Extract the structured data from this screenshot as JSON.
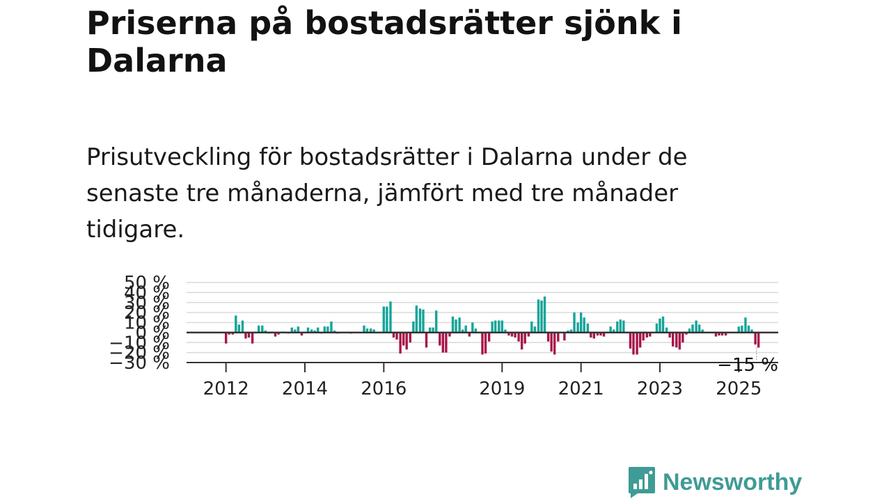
{
  "title": "Priserna på bostadsrätter sjönk i Dalarna",
  "subtitle": "Prisutveckling för bostadsrätter i Dalarna under de senaste tre månaderna, jämfört med tre månader tidigare.",
  "brand": {
    "name": "Newsworthy",
    "icon": "newsworthy-logo-icon",
    "color": "#3f9b95"
  },
  "chart_data": {
    "type": "bar",
    "y_unit": "%",
    "ylim": [
      -30,
      50
    ],
    "y_ticks": [
      50,
      40,
      30,
      20,
      10,
      0,
      -10,
      -20,
      -30
    ],
    "y_tick_labels": [
      "50 %",
      "40 %",
      "30 %",
      "20 %",
      "10 %",
      "0 %",
      "−10 %",
      "−20 %",
      "−30 %"
    ],
    "x_tick_labels": [
      "2012",
      "2014",
      "2016",
      "2019",
      "2021",
      "2023",
      "2025"
    ],
    "x_ticks": [
      2012,
      2014,
      2016,
      2019,
      2021,
      2023,
      2025
    ],
    "x_range": [
      2011.0,
      2026.0
    ],
    "grid": true,
    "colors": {
      "positive": "#14a59a",
      "negative": "#a8154a",
      "zero_line": "#333333"
    },
    "latest": {
      "x": 2025.45,
      "value": -15,
      "label": "−15 %"
    },
    "x": [
      2012.0,
      2012.08,
      2012.17,
      2012.25,
      2012.33,
      2012.42,
      2012.5,
      2012.58,
      2012.67,
      2012.75,
      2012.83,
      2012.92,
      2013.0,
      2013.08,
      2013.17,
      2013.25,
      2013.33,
      2013.42,
      2013.5,
      2013.58,
      2013.67,
      2013.75,
      2013.83,
      2013.92,
      2014.0,
      2014.08,
      2014.17,
      2014.25,
      2014.33,
      2014.42,
      2014.5,
      2014.58,
      2014.67,
      2014.75,
      2014.83,
      2014.92,
      2015.0,
      2015.08,
      2015.17,
      2015.25,
      2015.33,
      2015.42,
      2015.5,
      2015.58,
      2015.67,
      2015.75,
      2015.83,
      2015.92,
      2016.0,
      2016.08,
      2016.17,
      2016.25,
      2016.33,
      2016.42,
      2016.5,
      2016.58,
      2016.67,
      2016.75,
      2016.83,
      2016.92,
      2017.0,
      2017.08,
      2017.17,
      2017.25,
      2017.33,
      2017.42,
      2017.5,
      2017.58,
      2017.67,
      2017.75,
      2017.83,
      2017.92,
      2018.0,
      2018.08,
      2018.17,
      2018.25,
      2018.33,
      2018.42,
      2018.5,
      2018.58,
      2018.67,
      2018.75,
      2018.83,
      2018.92,
      2019.0,
      2019.08,
      2019.17,
      2019.25,
      2019.33,
      2019.42,
      2019.5,
      2019.58,
      2019.67,
      2019.75,
      2019.83,
      2019.92,
      2020.0,
      2020.08,
      2020.17,
      2020.25,
      2020.33,
      2020.42,
      2020.5,
      2020.58,
      2020.67,
      2020.75,
      2020.83,
      2020.92,
      2021.0,
      2021.08,
      2021.17,
      2021.25,
      2021.33,
      2021.42,
      2021.5,
      2021.58,
      2021.67,
      2021.75,
      2021.83,
      2021.92,
      2022.0,
      2022.08,
      2022.17,
      2022.25,
      2022.33,
      2022.42,
      2022.5,
      2022.58,
      2022.67,
      2022.75,
      2022.83,
      2022.92,
      2023.0,
      2023.08,
      2023.17,
      2023.25,
      2023.33,
      2023.42,
      2023.5,
      2023.58,
      2023.67,
      2023.75,
      2023.83,
      2023.92,
      2024.0,
      2024.08,
      2024.17,
      2024.25,
      2024.33,
      2024.42,
      2024.5,
      2024.58,
      2024.67,
      2024.75,
      2024.83,
      2024.92,
      2025.0,
      2025.08,
      2025.17,
      2025.25,
      2025.33,
      2025.42,
      2025.5
    ],
    "values": [
      -11,
      -2,
      -2,
      17,
      8,
      12,
      -6,
      -5,
      -11,
      0,
      7,
      7,
      2,
      -1,
      1,
      -4,
      -2,
      1,
      1,
      -1,
      5,
      3,
      6,
      -3,
      0,
      5,
      3,
      2,
      5,
      -1,
      6,
      6,
      11,
      2,
      -1,
      0,
      0,
      0,
      -1,
      0,
      0,
      0,
      7,
      4,
      4,
      3,
      0,
      0,
      26,
      26,
      31,
      -5,
      -7,
      -21,
      -13,
      -17,
      -10,
      11,
      27,
      24,
      23,
      -15,
      5,
      5,
      22,
      -13,
      -20,
      -20,
      -4,
      16,
      13,
      15,
      3,
      7,
      -4,
      10,
      4,
      0,
      -22,
      -21,
      -9,
      11,
      12,
      12,
      12,
      3,
      -3,
      -4,
      -5,
      -9,
      -17,
      -11,
      -4,
      11,
      6,
      33,
      32,
      36,
      -9,
      -19,
      -22,
      -9,
      0,
      -8,
      2,
      3,
      20,
      10,
      20,
      15,
      9,
      -5,
      -6,
      -3,
      -3,
      -4,
      0,
      6,
      3,
      11,
      13,
      12,
      0,
      -16,
      -22,
      -22,
      -15,
      -8,
      -5,
      -4,
      0,
      9,
      14,
      16,
      5,
      -5,
      -14,
      -15,
      -17,
      -10,
      -2,
      4,
      8,
      12,
      8,
      3,
      0,
      0,
      0,
      -4,
      -3,
      -3,
      -3,
      0,
      0,
      0,
      6,
      7,
      15,
      7,
      3,
      -12,
      -15
    ]
  }
}
